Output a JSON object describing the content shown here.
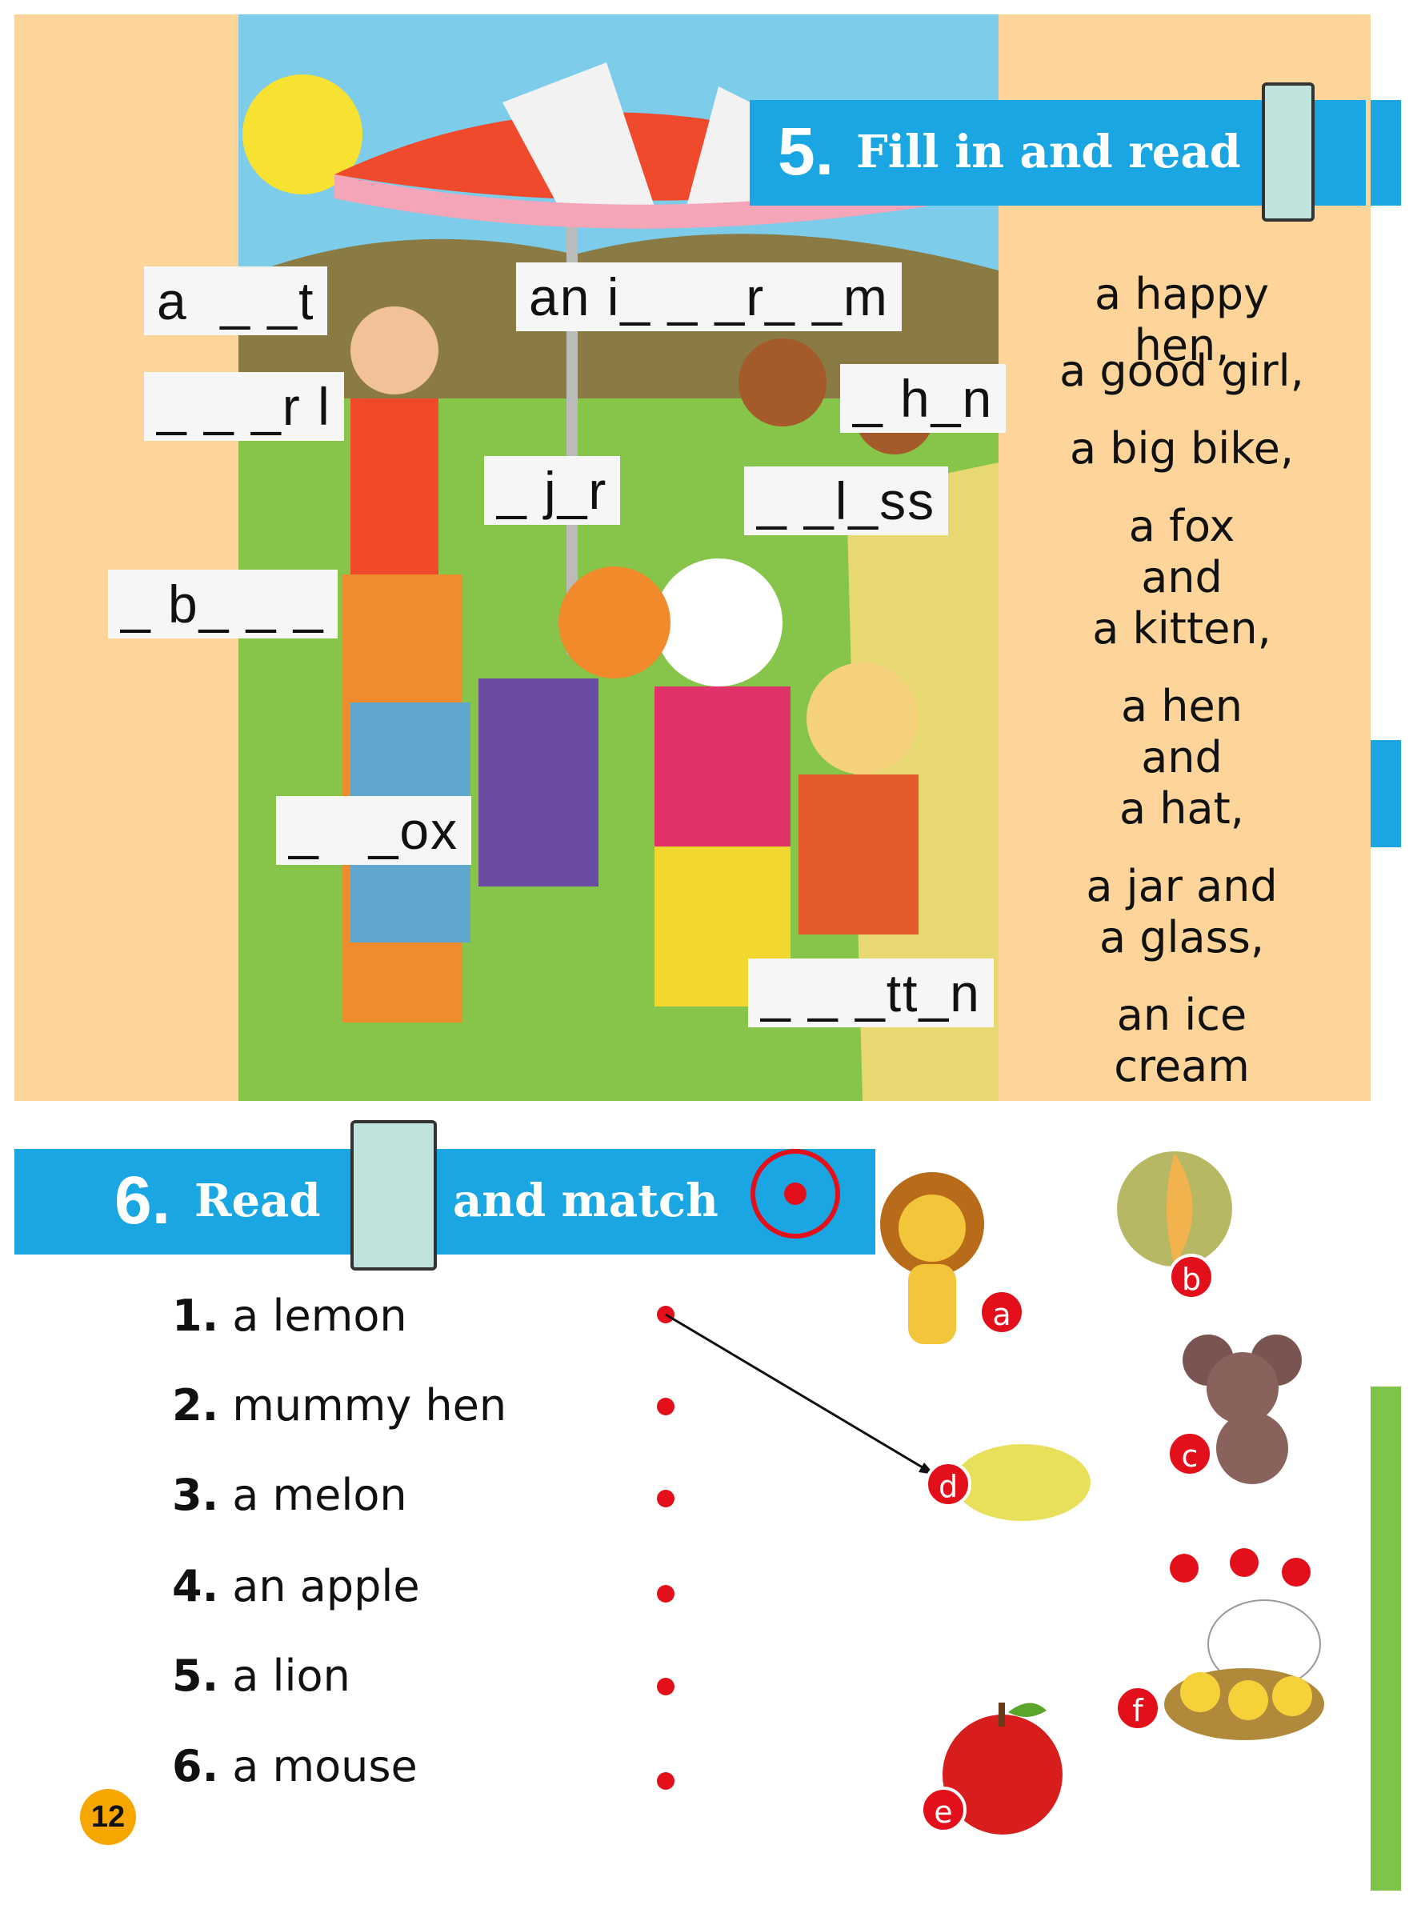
{
  "section5": {
    "number": "5.",
    "title": "Fill in and read",
    "blanks": [
      "a  _ _t",
      "an i_ _ _r_ _m",
      "_ _ _r l",
      "_ h_n",
      "_ j_r",
      "_ _l_ss",
      "_ b_ _ _",
      "_   _ox",
      "_ _ _tt_n"
    ],
    "phrases": [
      "a happy hen,",
      "a good girl,",
      "a big bike,",
      "a fox",
      "and",
      "a kitten,",
      "a hen",
      "and",
      "a hat,",
      "a jar and",
      "a glass,",
      "an ice cream"
    ]
  },
  "section6": {
    "number": "6.",
    "title_left": "Read",
    "title_right": "and match",
    "items": [
      {
        "num": "1.",
        "text": "a lemon"
      },
      {
        "num": "2.",
        "text": "mummy hen"
      },
      {
        "num": "3.",
        "text": "a melon"
      },
      {
        "num": "4.",
        "text": "an apple"
      },
      {
        "num": "5.",
        "text": "a lion"
      },
      {
        "num": "6.",
        "text": "a mouse"
      }
    ],
    "pictures": [
      {
        "letter": "a",
        "icon": "lion-icon"
      },
      {
        "letter": "b",
        "icon": "melon-icon"
      },
      {
        "letter": "c",
        "icon": "mouse-icon"
      },
      {
        "letter": "d",
        "icon": "lemon-icon"
      },
      {
        "letter": "e",
        "icon": "apple-icon"
      },
      {
        "letter": "f",
        "icon": "hen-with-chicks-icon"
      }
    ]
  },
  "page_number": "12",
  "colors": {
    "banner": "#1aa6e2",
    "panel": "#fdd59a",
    "accent_red": "#e3101b",
    "page_badge": "#f5a700"
  }
}
